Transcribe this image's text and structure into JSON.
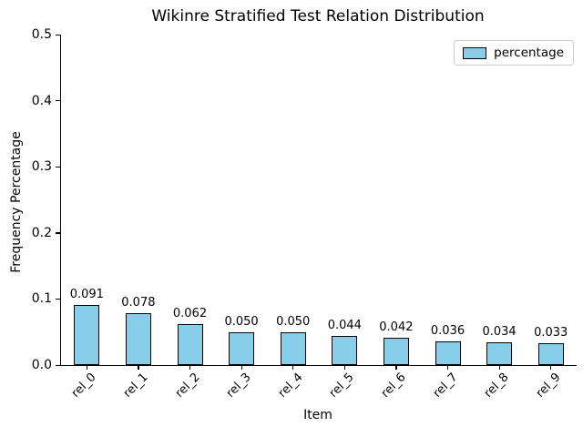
{
  "figure": {
    "title": "Wikinre Stratified Test Relation Distribution",
    "xlabel": "Item",
    "ylabel": "Frequency Percentage",
    "legend_label": "percentage"
  },
  "chart_data": {
    "type": "bar",
    "title": "Wikinre Stratified Test Relation Distribution",
    "xlabel": "Item",
    "ylabel": "Frequency Percentage",
    "categories": [
      "rel_0",
      "rel_1",
      "rel_2",
      "rel_3",
      "rel_4",
      "rel_5",
      "rel_6",
      "rel_7",
      "rel_8",
      "rel_9"
    ],
    "values": [
      0.091,
      0.078,
      0.062,
      0.05,
      0.05,
      0.044,
      0.042,
      0.036,
      0.034,
      0.033
    ],
    "value_labels": [
      "0.091",
      "0.078",
      "0.062",
      "0.050",
      "0.050",
      "0.044",
      "0.042",
      "0.036",
      "0.034",
      "0.033"
    ],
    "series_name": "percentage",
    "ylim": [
      0,
      0.5
    ],
    "yticks": [
      0.0,
      0.1,
      0.2,
      0.3,
      0.4,
      0.5
    ],
    "ytick_labels": [
      "0.0",
      "0.1",
      "0.2",
      "0.3",
      "0.4",
      "0.5"
    ],
    "xtick_rotation_deg": 45,
    "grid": false,
    "legend_position": "upper right",
    "bar_color": "#87CEEB",
    "bar_edge_color": "#000000",
    "background_color": "#ffffff"
  }
}
